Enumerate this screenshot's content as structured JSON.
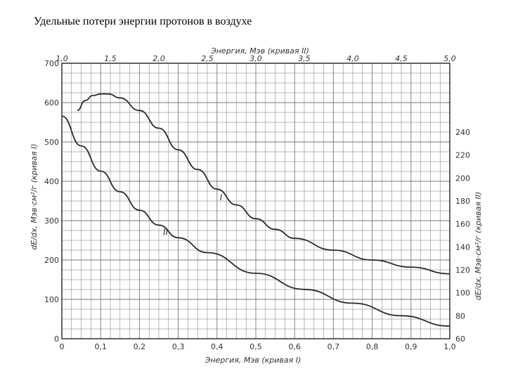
{
  "page": {
    "title": "Удельные потери энергии протонов в воздухе"
  },
  "chart_data": {
    "type": "line",
    "top_axis_label": "Энергия, Мэв (кривая II)",
    "bottom_axis_label": "Энергия, Мэв (кривая I)",
    "left_axis_label": "dE/dx, Мэв·см²/г (кривая I)",
    "right_axis_label": "dE/dx, Мэв·см²/г (кривая II)",
    "bottom_ticks": [
      "0",
      "0,1",
      "0,2",
      "0,3",
      "0,4",
      "0,5",
      "0,6",
      "0,7",
      "0,8",
      "0,9",
      "1,0"
    ],
    "top_ticks": [
      "1,0",
      "1,5",
      "2,0",
      "2,5",
      "3,0",
      "3,5",
      "4,0",
      "4,5",
      "5,0"
    ],
    "left_ticks": [
      "0",
      "100",
      "200",
      "300",
      "400",
      "500",
      "600",
      "700"
    ],
    "right_ticks": [
      "60",
      "80",
      "100",
      "120",
      "140",
      "160",
      "180",
      "200",
      "220",
      "240"
    ],
    "xlim_bottom": [
      0,
      1.0
    ],
    "xlim_top": [
      1.0,
      5.0
    ],
    "ylim_left": [
      0,
      700
    ],
    "ylim_right": [
      60,
      300
    ],
    "grid": true,
    "series": [
      {
        "name": "I",
        "x_axis": "bottom",
        "y_axis": "left",
        "x": [
          0.04,
          0.06,
          0.08,
          0.1,
          0.12,
          0.15,
          0.2,
          0.25,
          0.3,
          0.35,
          0.4,
          0.45,
          0.5,
          0.55,
          0.6,
          0.7,
          0.8,
          0.9,
          1.0
        ],
        "y": [
          580,
          605,
          618,
          622,
          622,
          612,
          580,
          535,
          480,
          430,
          380,
          340,
          305,
          278,
          255,
          225,
          200,
          182,
          165
        ]
      },
      {
        "name": "II",
        "x_axis": "top",
        "y_axis": "right",
        "x": [
          1.0,
          1.2,
          1.4,
          1.6,
          1.8,
          2.0,
          2.2,
          2.5,
          3.0,
          3.5,
          4.0,
          4.5,
          5.0
        ],
        "y": [
          254,
          228,
          206,
          188,
          172,
          159,
          148,
          135,
          117,
          103,
          91,
          80,
          71
        ]
      }
    ]
  }
}
